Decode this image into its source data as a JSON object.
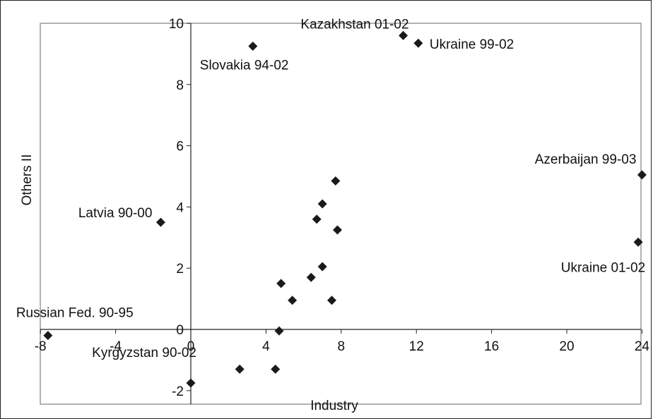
{
  "chart_data": {
    "type": "scatter",
    "title": "",
    "xlabel": "Industry",
    "ylabel": "Others II",
    "xlim": [
      -8,
      24
    ],
    "ylim": [
      -2,
      10
    ],
    "x_ticks": [
      -8,
      -4,
      0,
      4,
      8,
      12,
      16,
      20,
      24
    ],
    "y_ticks": [
      -2,
      0,
      2,
      4,
      6,
      8,
      10
    ],
    "x_tick_labels": [
      "-8",
      "-4",
      "0",
      "4",
      "8",
      "12",
      "16",
      "20",
      "24"
    ],
    "y_tick_labels": [
      "-2",
      "0",
      "2",
      "4",
      "6",
      "8",
      "10"
    ],
    "grid": false,
    "legend": "none",
    "marker": "diamond",
    "marker_color": "#1a1a1a",
    "points": [
      {
        "x": -7.6,
        "y": -0.2,
        "label": "Russian Fed. 90-95"
      },
      {
        "x": -1.6,
        "y": 3.5,
        "label": "Latvia 90-00"
      },
      {
        "x": 0.0,
        "y": -1.75,
        "label": "Kyrgyzstan 90-02"
      },
      {
        "x": 2.6,
        "y": -1.3,
        "label": ""
      },
      {
        "x": 3.3,
        "y": 9.25,
        "label": "Slovakia 94-02"
      },
      {
        "x": 4.5,
        "y": -1.3,
        "label": ""
      },
      {
        "x": 4.7,
        "y": -0.05,
        "label": ""
      },
      {
        "x": 4.8,
        "y": 1.5,
        "label": ""
      },
      {
        "x": 5.4,
        "y": 0.95,
        "label": ""
      },
      {
        "x": 6.4,
        "y": 1.7,
        "label": ""
      },
      {
        "x": 6.7,
        "y": 3.6,
        "label": ""
      },
      {
        "x": 7.0,
        "y": 2.05,
        "label": ""
      },
      {
        "x": 7.0,
        "y": 4.1,
        "label": ""
      },
      {
        "x": 7.5,
        "y": 0.95,
        "label": ""
      },
      {
        "x": 7.7,
        "y": 4.85,
        "label": ""
      },
      {
        "x": 7.8,
        "y": 3.25,
        "label": ""
      },
      {
        "x": 11.3,
        "y": 9.6,
        "label": "Kazakhstan 01-02"
      },
      {
        "x": 12.1,
        "y": 9.35,
        "label": "Ukraine 99-02"
      },
      {
        "x": 23.8,
        "y": 2.85,
        "label": "Ukraine 01-02"
      },
      {
        "x": 24.0,
        "y": 5.05,
        "label": "Azerbaijan 99-03"
      }
    ]
  }
}
